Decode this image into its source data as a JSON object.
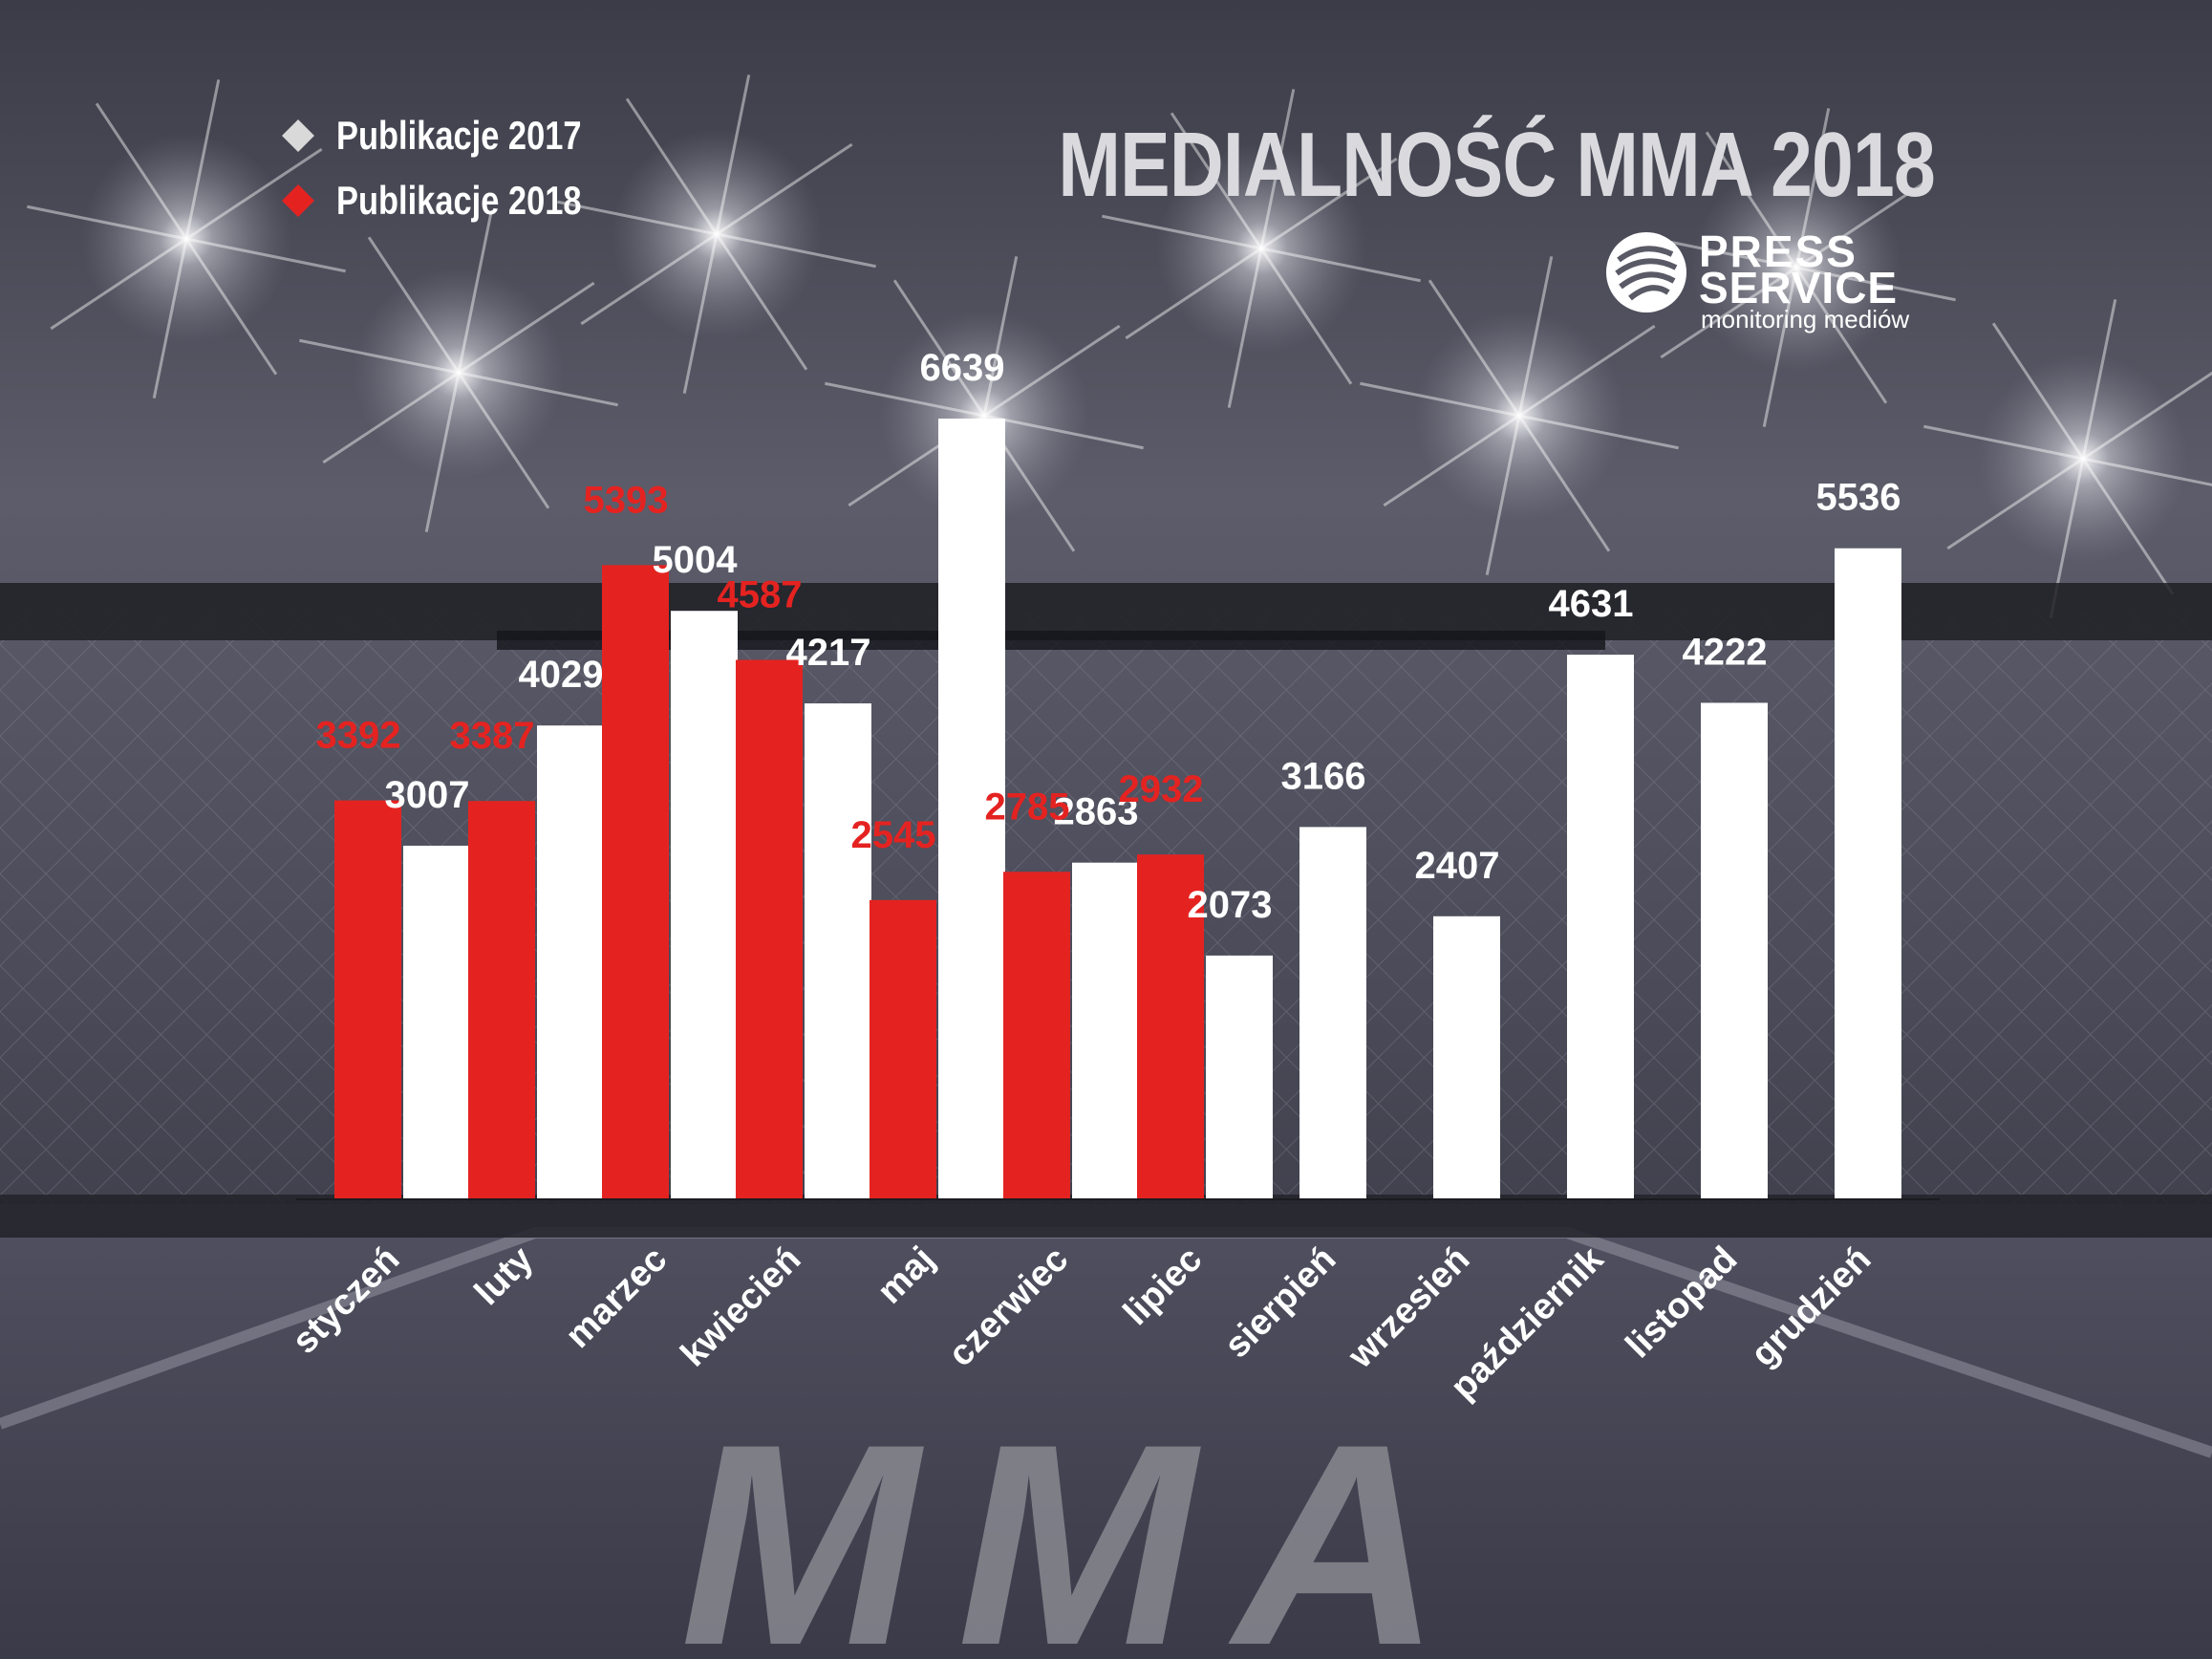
{
  "header": {
    "title": "MEDIALNOŚĆ MMA 2018"
  },
  "legend": [
    {
      "label": "Publikacje 2017",
      "color": "#d9d9d9"
    },
    {
      "label": "Publikacje 2018",
      "color": "#e42321"
    }
  ],
  "logo": {
    "line1": "PRESS",
    "line2": "SERVICE",
    "line3": "monitoring mediów"
  },
  "floor_text": "MMA",
  "colors": {
    "series_2018": "#e42321",
    "series_2017": "#ffffff",
    "label_2017": "#ffffff",
    "label_2018": "#e42321"
  },
  "chart_data": {
    "type": "bar",
    "title": "MEDIALNOŚĆ MMA 2018",
    "xlabel": "",
    "ylabel": "",
    "ylim": [
      0,
      6639
    ],
    "grid": false,
    "legend_position": "top-left",
    "categories": [
      "styczeń",
      "luty",
      "marzec",
      "kwiecień",
      "maj",
      "czerwiec",
      "lipiec",
      "sierpień",
      "wrzesień",
      "październik",
      "listopad",
      "grudzień"
    ],
    "series": [
      {
        "name": "Publikacje 2018",
        "values": [
          3392,
          3387,
          5393,
          4587,
          2545,
          2785,
          2932,
          null,
          null,
          null,
          null,
          null
        ]
      },
      {
        "name": "Publikacje 2017",
        "values": [
          3007,
          4029,
          5004,
          4217,
          6639,
          2863,
          2073,
          3166,
          2407,
          4631,
          4222,
          5536
        ]
      }
    ]
  }
}
